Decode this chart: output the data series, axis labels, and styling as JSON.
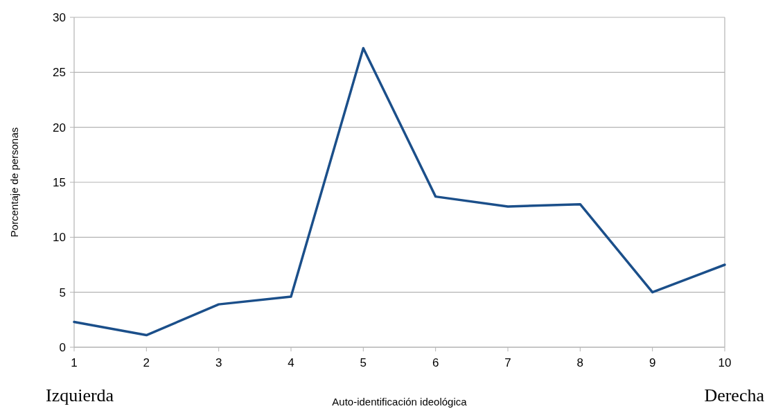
{
  "chart_data": {
    "type": "line",
    "xlabel": "Auto-identificación ideológica",
    "ylabel": "Porcentaje de personas",
    "x": [
      1,
      2,
      3,
      4,
      5,
      6,
      7,
      8,
      9,
      10
    ],
    "series": [
      {
        "color": "#1b4f8a",
        "values": [
          2.3,
          1.1,
          3.9,
          4.6,
          27.2,
          13.7,
          12.8,
          13.0,
          5.0,
          7.5
        ]
      }
    ],
    "xlim": [
      1,
      10
    ],
    "xticks": [
      1,
      2,
      3,
      4,
      5,
      6,
      7,
      8,
      9,
      10
    ],
    "ylim": [
      0,
      30
    ],
    "yticks": [
      0,
      5,
      10,
      15,
      20,
      25,
      30
    ],
    "grid": "y",
    "marker": "none",
    "line_style": "solid",
    "annotations": [
      "Izquierda",
      "Derecha"
    ]
  }
}
